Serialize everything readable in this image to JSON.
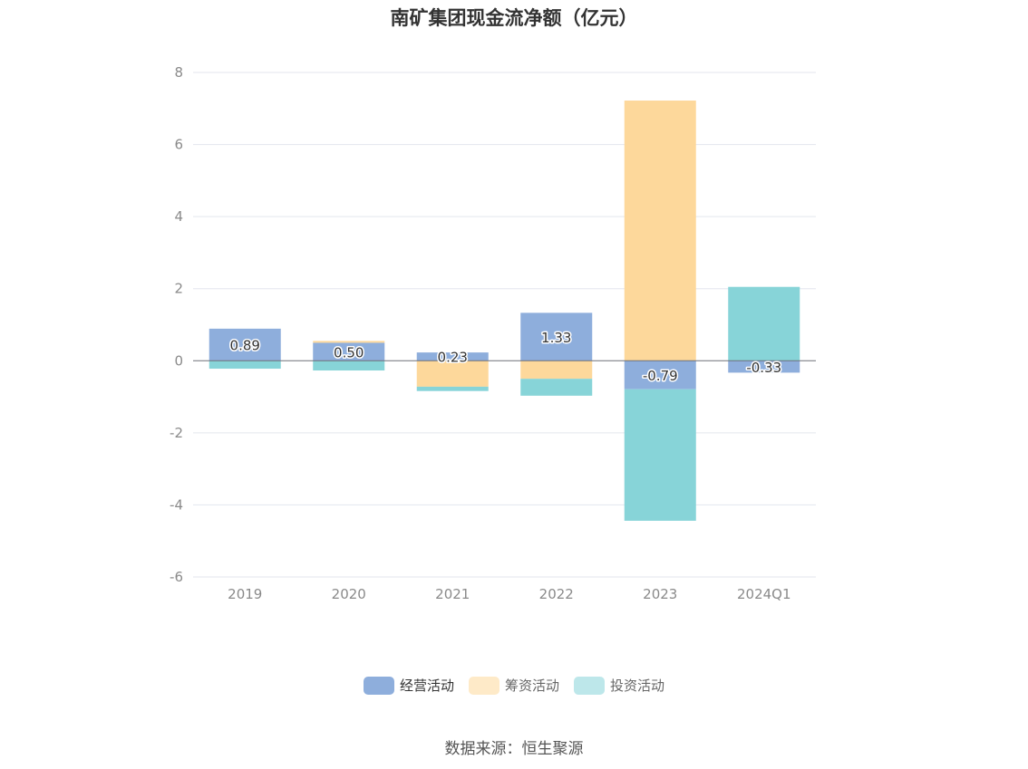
{
  "chart_data": {
    "type": "bar",
    "stacked": true,
    "title": "南矿集团现金流净额（亿元）",
    "xlabel": "",
    "ylabel": "",
    "categories": [
      "2019",
      "2020",
      "2021",
      "2022",
      "2023",
      "2024Q1"
    ],
    "ylim": [
      -6,
      8
    ],
    "yticks": [
      "8",
      "6",
      "4",
      "2",
      "0",
      "-2",
      "-4",
      "-6"
    ],
    "grid": true,
    "legend_position": "bottom",
    "series": [
      {
        "name": "经营活动",
        "color": "#8eaedc",
        "values": [
          0.89,
          0.5,
          0.23,
          1.33,
          -0.79,
          -0.33
        ],
        "labels": [
          "0.89",
          "0.50",
          "0.23",
          "1.33",
          "-0.79",
          "-0.33"
        ]
      },
      {
        "name": "筹资活动",
        "color": "#fdd89b",
        "values": [
          0.0,
          0.05,
          -0.72,
          -0.5,
          7.22,
          0.0
        ]
      },
      {
        "name": "投资活动",
        "color": "#87d4d8",
        "values": [
          -0.22,
          -0.27,
          -0.12,
          -0.47,
          -3.65,
          2.05
        ]
      }
    ],
    "source": "数据来源：恒生聚源"
  }
}
